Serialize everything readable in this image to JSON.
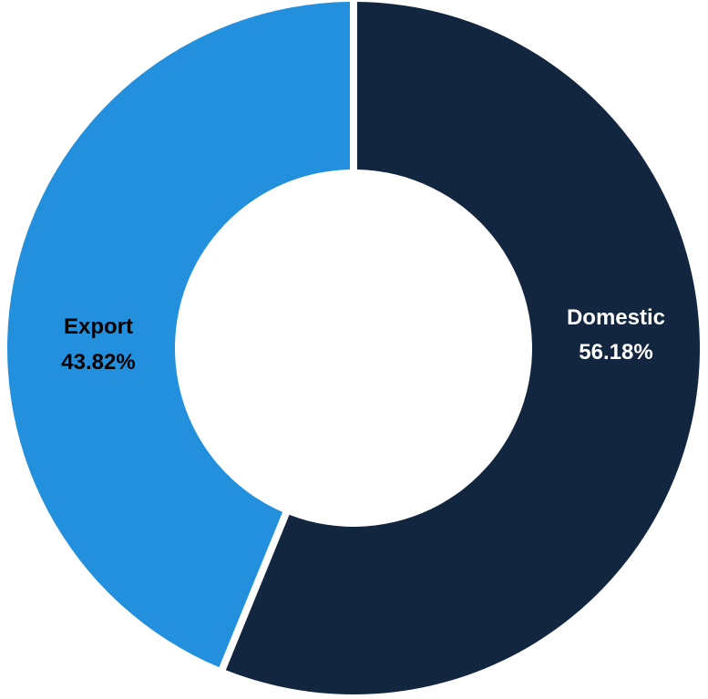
{
  "chart_data": {
    "type": "pie",
    "variant": "doughnut",
    "title": "",
    "legend": "none",
    "slices": [
      {
        "label": "Domestic",
        "value": 56.18,
        "value_label": "56.18%",
        "color": "#13263f",
        "label_color": "#ffffff"
      },
      {
        "label": "Export",
        "value": 43.82,
        "value_label": "43.82%",
        "color": "#2290dd",
        "label_color": "#000000"
      }
    ]
  }
}
